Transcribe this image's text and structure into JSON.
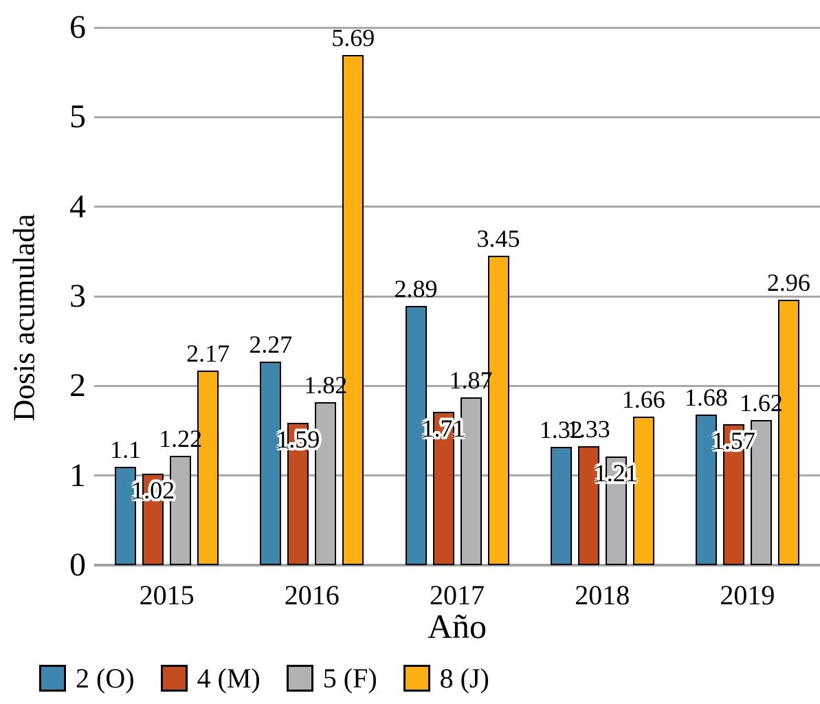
{
  "chart_data": {
    "type": "bar",
    "title": "",
    "xlabel": "Año",
    "ylabel": "Dosis acumulada",
    "ylim": [
      0,
      6
    ],
    "yticks": [
      0,
      1,
      2,
      3,
      4,
      5,
      6
    ],
    "grid": true,
    "legend_position": "bottom-left",
    "categories": [
      "2015",
      "2016",
      "2017",
      "2018",
      "2019"
    ],
    "series": [
      {
        "name": "2 (O)",
        "color": "#3E86AE",
        "values": [
          1.1,
          2.27,
          2.89,
          1.32,
          1.68
        ],
        "labels": [
          "1.1",
          "2.27",
          "2.89",
          "1.32",
          "1.68"
        ],
        "label_inside": [
          false,
          false,
          false,
          false,
          false
        ]
      },
      {
        "name": "4 (M)",
        "color": "#C44C1E",
        "values": [
          1.02,
          1.59,
          1.71,
          1.33,
          1.57
        ],
        "labels": [
          "1.02",
          "1.59",
          "1.71",
          "1.33",
          "1.57"
        ],
        "label_inside": [
          true,
          true,
          true,
          false,
          true
        ]
      },
      {
        "name": "5 (F)",
        "color": "#B2B2B5",
        "values": [
          1.22,
          1.82,
          1.87,
          1.21,
          1.62
        ],
        "labels": [
          "1.22",
          "1.82",
          "1.87",
          "1.21",
          "1.62"
        ],
        "label_inside": [
          false,
          false,
          false,
          true,
          false
        ]
      },
      {
        "name": "8 (J)",
        "color": "#FBAF12",
        "values": [
          2.17,
          5.69,
          3.45,
          1.66,
          2.96
        ],
        "labels": [
          "2.17",
          "5.69",
          "3.45",
          "1.66",
          "2.96"
        ],
        "label_inside": [
          false,
          false,
          false,
          false,
          false
        ]
      }
    ],
    "gridline_color": "#a8a8a8",
    "bar_border_color": "#000000"
  }
}
